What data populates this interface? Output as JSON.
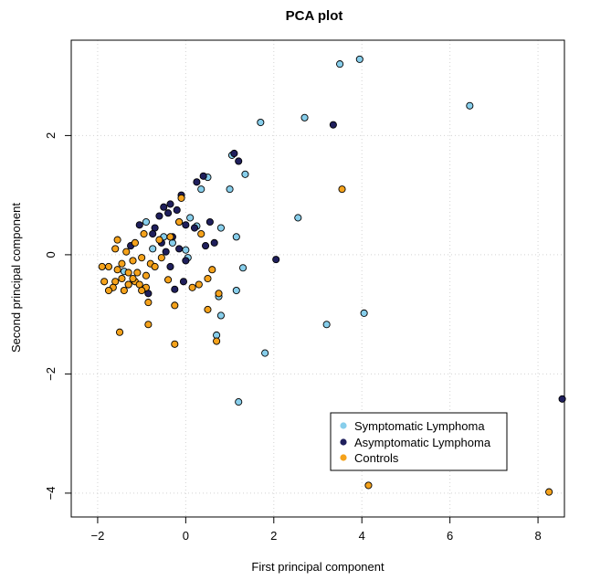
{
  "chart_data": {
    "type": "scatter",
    "title": "PCA plot",
    "xlabel": "First principal component",
    "ylabel": "Second principal component",
    "xlim": [
      -2.6,
      8.6
    ],
    "ylim": [
      -4.4,
      3.6
    ],
    "x_ticks": [
      -2,
      0,
      2,
      4,
      6,
      8
    ],
    "y_ticks": [
      -4,
      -2,
      0,
      2
    ],
    "x_tick_labels": [
      "−2",
      "0",
      "2",
      "4",
      "6",
      "8"
    ],
    "y_tick_labels": [
      "−4",
      "−2",
      "0",
      "2"
    ],
    "grid": true,
    "legend_position": "bottom-right",
    "series": [
      {
        "name": "Symptomatic Lymphoma",
        "color": "#87CEEB",
        "points": [
          [
            3.5,
            3.2
          ],
          [
            3.95,
            3.28
          ],
          [
            6.45,
            2.5
          ],
          [
            2.7,
            2.3
          ],
          [
            1.7,
            2.22
          ],
          [
            1.05,
            1.67
          ],
          [
            1.35,
            1.35
          ],
          [
            0.5,
            1.3
          ],
          [
            0.35,
            1.1
          ],
          [
            1.0,
            1.1
          ],
          [
            2.55,
            0.62
          ],
          [
            0.1,
            0.62
          ],
          [
            -0.15,
            0.55
          ],
          [
            0.25,
            0.48
          ],
          [
            0.8,
            0.45
          ],
          [
            -0.5,
            0.3
          ],
          [
            1.15,
            0.3
          ],
          [
            0.0,
            0.08
          ],
          [
            0.05,
            -0.05
          ],
          [
            1.3,
            -0.22
          ],
          [
            0.75,
            -0.7
          ],
          [
            1.15,
            -0.6
          ],
          [
            0.7,
            -1.35
          ],
          [
            0.8,
            -1.02
          ],
          [
            3.2,
            -1.17
          ],
          [
            4.05,
            -0.98
          ],
          [
            1.8,
            -1.65
          ],
          [
            1.2,
            -2.47
          ],
          [
            -0.9,
            0.55
          ],
          [
            -1.4,
            -0.28
          ],
          [
            -0.75,
            0.1
          ],
          [
            -0.3,
            0.2
          ]
        ]
      },
      {
        "name": "Asymptomatic Lymphoma",
        "color": "#1F1F5C",
        "points": [
          [
            3.35,
            2.18
          ],
          [
            1.2,
            1.57
          ],
          [
            1.1,
            1.7
          ],
          [
            0.4,
            1.32
          ],
          [
            0.25,
            1.22
          ],
          [
            -0.1,
            1.0
          ],
          [
            -0.35,
            0.85
          ],
          [
            -0.5,
            0.8
          ],
          [
            -0.2,
            0.75
          ],
          [
            -0.4,
            0.7
          ],
          [
            0.0,
            0.5
          ],
          [
            -0.6,
            0.65
          ],
          [
            -1.05,
            0.5
          ],
          [
            -0.7,
            0.45
          ],
          [
            0.2,
            0.45
          ],
          [
            0.55,
            0.55
          ],
          [
            -0.3,
            0.3
          ],
          [
            -0.55,
            0.2
          ],
          [
            0.65,
            0.2
          ],
          [
            0.45,
            0.15
          ],
          [
            -0.15,
            0.1
          ],
          [
            -0.45,
            0.05
          ],
          [
            0.0,
            -0.1
          ],
          [
            -0.75,
            0.35
          ],
          [
            -1.25,
            0.15
          ],
          [
            -0.35,
            -0.2
          ],
          [
            -0.85,
            -0.65
          ],
          [
            -0.05,
            -0.45
          ],
          [
            2.05,
            -0.08
          ],
          [
            8.55,
            -2.42
          ],
          [
            -0.25,
            -0.58
          ],
          [
            -1.3,
            -0.5
          ]
        ]
      },
      {
        "name": "Controls",
        "color": "#F5A21B",
        "points": [
          [
            3.55,
            1.1
          ],
          [
            -0.1,
            0.95
          ],
          [
            -0.15,
            0.55
          ],
          [
            -0.35,
            0.3
          ],
          [
            0.35,
            0.35
          ],
          [
            -0.95,
            0.35
          ],
          [
            -1.15,
            0.2
          ],
          [
            -1.6,
            0.1
          ],
          [
            -1.35,
            0.05
          ],
          [
            -1.0,
            -0.05
          ],
          [
            -0.55,
            -0.05
          ],
          [
            -0.8,
            -0.15
          ],
          [
            -1.2,
            -0.1
          ],
          [
            -1.45,
            -0.15
          ],
          [
            -1.9,
            -0.2
          ],
          [
            -1.75,
            -0.2
          ],
          [
            -1.55,
            -0.25
          ],
          [
            -1.3,
            -0.3
          ],
          [
            -1.1,
            -0.3
          ],
          [
            -0.9,
            -0.35
          ],
          [
            -0.7,
            -0.2
          ],
          [
            -1.45,
            -0.4
          ],
          [
            -1.6,
            -0.45
          ],
          [
            -1.85,
            -0.45
          ],
          [
            -1.15,
            -0.45
          ],
          [
            -1.05,
            -0.5
          ],
          [
            -0.9,
            -0.55
          ],
          [
            -1.3,
            -0.5
          ],
          [
            -1.65,
            -0.55
          ],
          [
            -1.4,
            -0.6
          ],
          [
            -1.75,
            -0.6
          ],
          [
            -1.2,
            -0.4
          ],
          [
            -1.0,
            -0.6
          ],
          [
            -0.4,
            -0.42
          ],
          [
            0.5,
            -0.4
          ],
          [
            0.15,
            -0.55
          ],
          [
            0.3,
            -0.5
          ],
          [
            0.75,
            -0.65
          ],
          [
            -1.5,
            -1.3
          ],
          [
            -0.85,
            -1.17
          ],
          [
            -0.25,
            -1.5
          ],
          [
            0.5,
            -0.92
          ],
          [
            0.7,
            -1.45
          ],
          [
            -0.25,
            -0.85
          ],
          [
            -1.55,
            0.25
          ],
          [
            4.15,
            -3.87
          ],
          [
            8.25,
            -3.98
          ],
          [
            -0.85,
            -0.8
          ],
          [
            -0.6,
            0.25
          ],
          [
            0.6,
            -0.25
          ]
        ]
      }
    ]
  },
  "legend": {
    "items": [
      {
        "label": "Symptomatic Lymphoma",
        "color": "#87CEEB"
      },
      {
        "label": "Asymptomatic Lymphoma",
        "color": "#1F1F5C"
      },
      {
        "label": "Controls",
        "color": "#F5A21B"
      }
    ]
  }
}
